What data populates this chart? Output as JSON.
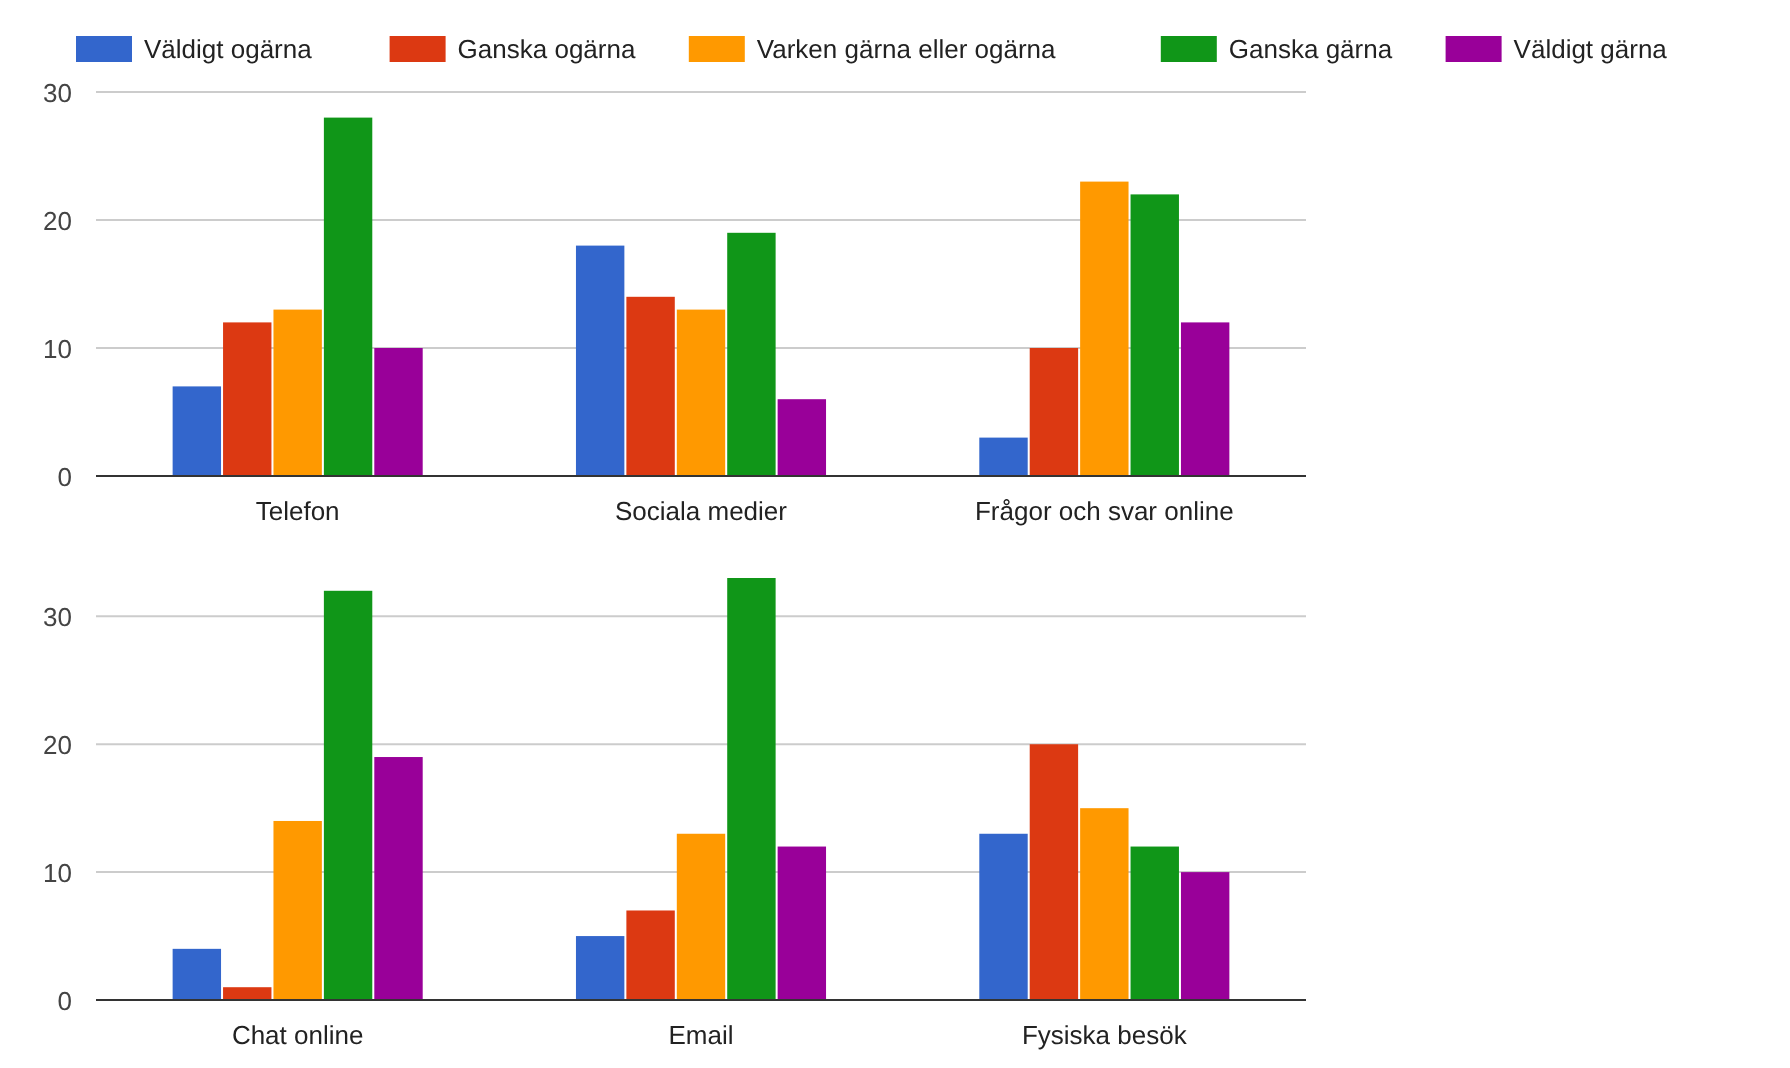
{
  "chart_data": [
    {
      "type": "bar",
      "categories": [
        "Telefon",
        "Sociala medier",
        "Frågor och svar online"
      ],
      "ylim": [
        0,
        30
      ],
      "yticks": [
        0,
        10,
        20,
        30
      ],
      "grid": "y",
      "legend": "top",
      "series": [
        {
          "name": "Väldigt ogärna",
          "color": "#3366cc",
          "values": [
            7,
            18,
            3
          ]
        },
        {
          "name": "Ganska ogärna",
          "color": "#dc3912",
          "values": [
            12,
            14,
            10
          ]
        },
        {
          "name": "Varken gärna eller ogärna",
          "color": "#ff9900",
          "values": [
            13,
            13,
            23
          ]
        },
        {
          "name": "Ganska gärna",
          "color": "#109618",
          "values": [
            28,
            19,
            22
          ]
        },
        {
          "name": "Väldigt gärna",
          "color": "#990099",
          "values": [
            10,
            6,
            12
          ]
        }
      ]
    },
    {
      "type": "bar",
      "categories": [
        "Chat online",
        "Email",
        "Fysiska besök"
      ],
      "ylim": [
        0,
        33
      ],
      "yticks": [
        0,
        10,
        20,
        30
      ],
      "grid": "y",
      "series": [
        {
          "color": "#3366cc",
          "values": [
            4,
            5,
            13
          ]
        },
        {
          "color": "#dc3912",
          "values": [
            1,
            7,
            20
          ]
        },
        {
          "color": "#ff9900",
          "values": [
            14,
            13,
            15
          ]
        },
        {
          "color": "#109618",
          "values": [
            32,
            33,
            12
          ]
        },
        {
          "color": "#990099",
          "values": [
            19,
            12,
            10
          ]
        }
      ]
    }
  ]
}
